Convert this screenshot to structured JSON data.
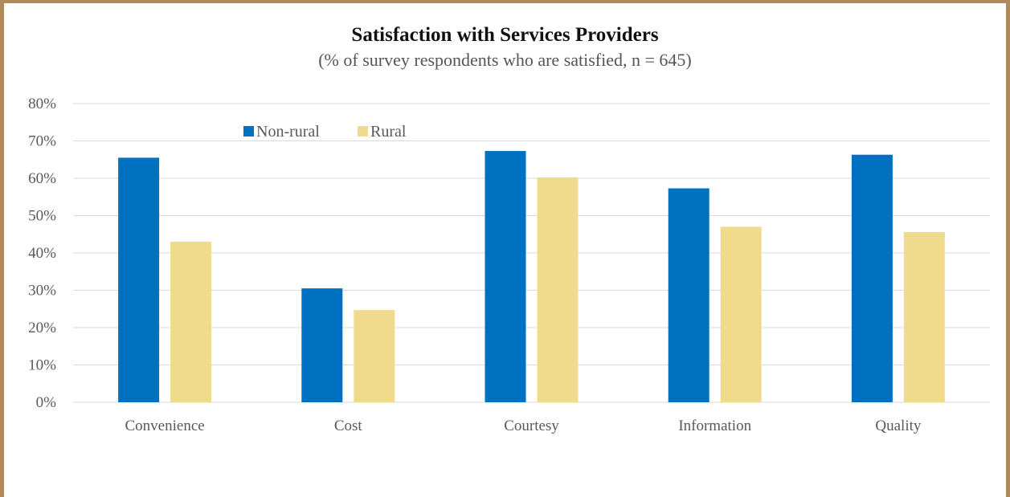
{
  "chart_data": {
    "type": "bar",
    "title": "Satisfaction with Services Providers",
    "subtitle": "(% of survey respondents who are satisfied, n = 645)",
    "categories": [
      "Convenience",
      "Cost",
      "Courtesy",
      "Information",
      "Quality"
    ],
    "series": [
      {
        "name": "Non-rural",
        "values": [
          65.5,
          30.5,
          67.3,
          57.3,
          66.3
        ],
        "color": "#0070c0"
      },
      {
        "name": "Rural",
        "values": [
          43.0,
          24.7,
          60.2,
          47.0,
          45.6
        ],
        "color": "#f0da8c"
      }
    ],
    "ylim": [
      0,
      80
    ],
    "yticks": [
      "0%",
      "10%",
      "20%",
      "30%",
      "40%",
      "50%",
      "60%",
      "70%",
      "80%"
    ],
    "grid": true,
    "legend_position": "top-left",
    "gridline_color": "#d9d9d9",
    "frame_color": "#b08a5a"
  }
}
